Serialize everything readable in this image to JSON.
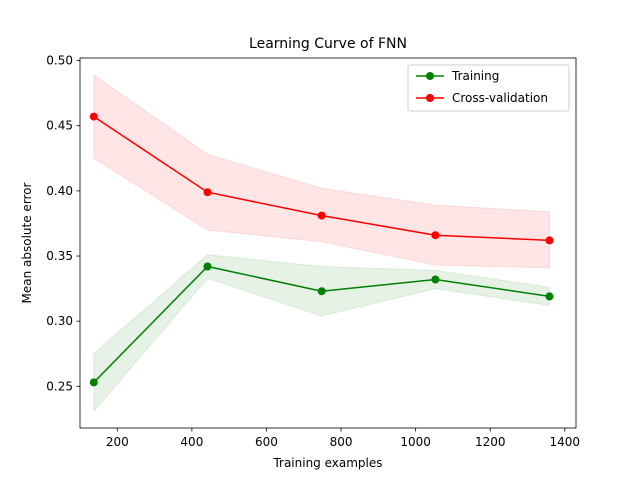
{
  "chart_data": {
    "type": "line",
    "title": "Learning Curve of FNN",
    "xlabel": "Training examples",
    "ylabel": "Mean absolute error",
    "xlim": [
      100,
      1430
    ],
    "ylim": [
      0.218,
      0.502
    ],
    "xticks": [
      200,
      400,
      600,
      800,
      1000,
      1200,
      1400
    ],
    "yticks": [
      0.25,
      0.3,
      0.35,
      0.4,
      0.45,
      0.5
    ],
    "legend_position": "top-right",
    "grid": false,
    "x": [
      137,
      442,
      748,
      1053,
      1359
    ],
    "series": [
      {
        "name": "Training",
        "color": "#008000",
        "band_color": "#008000",
        "values": [
          0.253,
          0.342,
          0.323,
          0.332,
          0.319
        ],
        "lower": [
          0.231,
          0.333,
          0.304,
          0.325,
          0.312
        ],
        "upper": [
          0.275,
          0.351,
          0.342,
          0.339,
          0.326
        ]
      },
      {
        "name": "Cross-validation",
        "color": "#ff0000",
        "band_color": "#ff0000",
        "values": [
          0.457,
          0.399,
          0.381,
          0.366,
          0.362
        ],
        "lower": [
          0.425,
          0.37,
          0.361,
          0.343,
          0.341
        ],
        "upper": [
          0.489,
          0.428,
          0.402,
          0.389,
          0.384
        ]
      }
    ]
  }
}
